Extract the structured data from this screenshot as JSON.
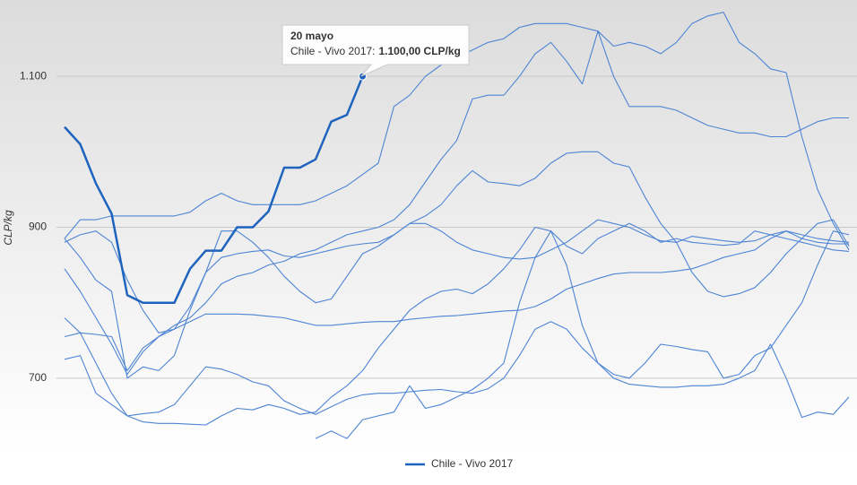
{
  "chart_data": {
    "type": "line",
    "y_label": "CLP/kg",
    "ylim": [
      600,
      1200
    ],
    "yticks": [
      700,
      900,
      {
        "value": 1100,
        "label": "1.100"
      }
    ],
    "grid": true,
    "legend": "bottom",
    "categories": [
      null,
      null,
      null,
      null,
      null,
      null,
      null,
      null,
      null,
      null,
      null,
      null,
      null,
      null,
      null,
      null,
      null,
      null,
      null,
      null,
      null,
      null,
      null,
      null,
      null,
      null,
      null,
      null,
      null,
      null,
      null,
      null,
      null,
      null,
      null,
      null,
      null,
      null,
      null,
      null,
      null,
      null,
      null,
      null,
      null,
      null,
      null,
      null,
      null,
      null,
      null
    ],
    "series": [
      {
        "color": "#4d84d4",
        "values": [
          885,
          910,
          910,
          915,
          915,
          915,
          915,
          915,
          920,
          935,
          945,
          935,
          930,
          930,
          930,
          930,
          935,
          945,
          955,
          970,
          985,
          1060,
          1075,
          1100,
          1115,
          1125,
          1135,
          1145,
          1150,
          1165,
          1170,
          1170,
          1170,
          1165,
          1160,
          1140,
          1145,
          1140,
          1130,
          1145,
          1170,
          1180,
          1185,
          1145,
          1130,
          1110,
          1105,
          1020,
          950,
          905,
          870
        ]
      },
      {
        "color": "#4d84d4",
        "values": [
          845,
          815,
          780,
          745,
          705,
          735,
          755,
          770,
          780,
          800,
          825,
          835,
          840,
          850,
          855,
          865,
          870,
          880,
          890,
          895,
          900,
          910,
          930,
          960,
          990,
          1015,
          1070,
          1075,
          1075,
          1100,
          1130,
          1145,
          1120,
          1090,
          1160,
          1100,
          1060,
          1060,
          1060,
          1055,
          1045,
          1035,
          1030,
          1025,
          1025,
          1020,
          1020,
          1030,
          1040,
          1045,
          1045
        ]
      },
      {
        "color": "#4d84d4",
        "values": [
          885,
          860,
          830,
          815,
          700,
          715,
          710,
          730,
          790,
          840,
          895,
          895,
          880,
          860,
          835,
          815,
          800,
          805,
          835,
          865,
          875,
          890,
          905,
          915,
          930,
          955,
          975,
          960,
          958,
          955,
          965,
          985,
          998,
          1000,
          1000,
          985,
          980,
          940,
          905,
          880,
          840,
          815,
          808,
          812,
          820,
          840,
          865,
          885,
          905,
          910,
          875
        ]
      },
      {
        "color": "#4d84d4",
        "values": [
          880,
          890,
          895,
          880,
          830,
          790,
          760,
          765,
          795,
          840,
          860,
          865,
          868,
          870,
          862,
          860,
          865,
          870,
          875,
          878,
          880,
          890,
          905,
          905,
          895,
          880,
          870,
          865,
          860,
          858,
          860,
          870,
          880,
          895,
          910,
          905,
          900,
          890,
          882,
          880,
          888,
          885,
          882,
          880,
          882,
          890,
          895,
          890,
          885,
          882,
          880
        ]
      },
      {
        "color": "#4d84d4",
        "values": [
          755,
          760,
          758,
          755,
          710,
          740,
          755,
          765,
          775,
          785,
          785,
          785,
          784,
          782,
          780,
          775,
          770,
          770,
          772,
          774,
          775,
          775,
          778,
          780,
          782,
          783,
          785,
          787,
          789,
          790,
          795,
          805,
          818,
          825,
          832,
          838,
          840,
          840,
          840,
          842,
          845,
          852,
          860,
          865,
          870,
          885,
          895,
          885,
          880,
          878,
          878
        ]
      },
      {
        "color": "#4d84d4",
        "values": [
          725,
          730,
          680,
          665,
          650,
          653,
          655,
          665,
          690,
          715,
          712,
          705,
          695,
          690,
          670,
          660,
          652,
          662,
          672,
          678,
          680,
          680,
          682,
          684,
          685,
          682,
          680,
          686,
          700,
          730,
          765,
          775,
          765,
          740,
          720,
          705,
          700,
          720,
          745,
          742,
          738,
          735,
          700,
          705,
          730,
          740,
          770,
          800,
          850,
          895,
          890
        ]
      },
      {
        "color": "#4d84d4",
        "values": [
          780,
          760,
          720,
          680,
          650,
          642,
          640,
          640,
          639,
          638,
          650,
          660,
          658,
          665,
          660,
          652,
          655,
          675,
          690,
          710,
          740,
          765,
          790,
          805,
          815,
          818,
          812,
          825,
          845,
          870,
          900,
          895,
          850,
          770,
          720,
          700,
          692,
          690,
          688,
          688,
          690,
          690,
          692,
          700,
          710,
          745,
          700,
          648,
          655,
          652,
          675
        ]
      },
      {
        "color": "#4d84d4",
        "values": [
          null,
          null,
          null,
          null,
          null,
          null,
          null,
          null,
          null,
          null,
          null,
          null,
          null,
          null,
          null,
          null,
          620,
          630,
          620,
          645,
          650,
          655,
          690,
          660,
          665,
          675,
          685,
          700,
          720,
          800,
          860,
          895,
          875,
          865,
          885,
          895,
          905,
          895,
          880,
          885,
          880,
          878,
          876,
          878,
          895,
          890,
          885,
          880,
          875,
          870,
          868
        ]
      },
      {
        "name": "Chile - Vivo 2017",
        "color": "#1e63bd",
        "bold": true,
        "values": [
          1033,
          1010,
          958,
          918,
          810,
          800,
          800,
          800,
          845,
          869,
          869,
          900,
          900,
          921,
          979,
          979,
          990,
          1040,
          1049,
          1100,
          null,
          null,
          null,
          null,
          null,
          null,
          null,
          null,
          null,
          null,
          null,
          null,
          null,
          null,
          null,
          null,
          null,
          null,
          null,
          null,
          null,
          null,
          null,
          null,
          null,
          null,
          null,
          null,
          null,
          null,
          null
        ]
      }
    ],
    "tooltip": {
      "series": 8,
      "index": 19,
      "date": "20 mayo",
      "series_label": "Chile - Vivo 2017:",
      "value": 1100,
      "value_label": "1.100,00 CLP/kg"
    }
  }
}
